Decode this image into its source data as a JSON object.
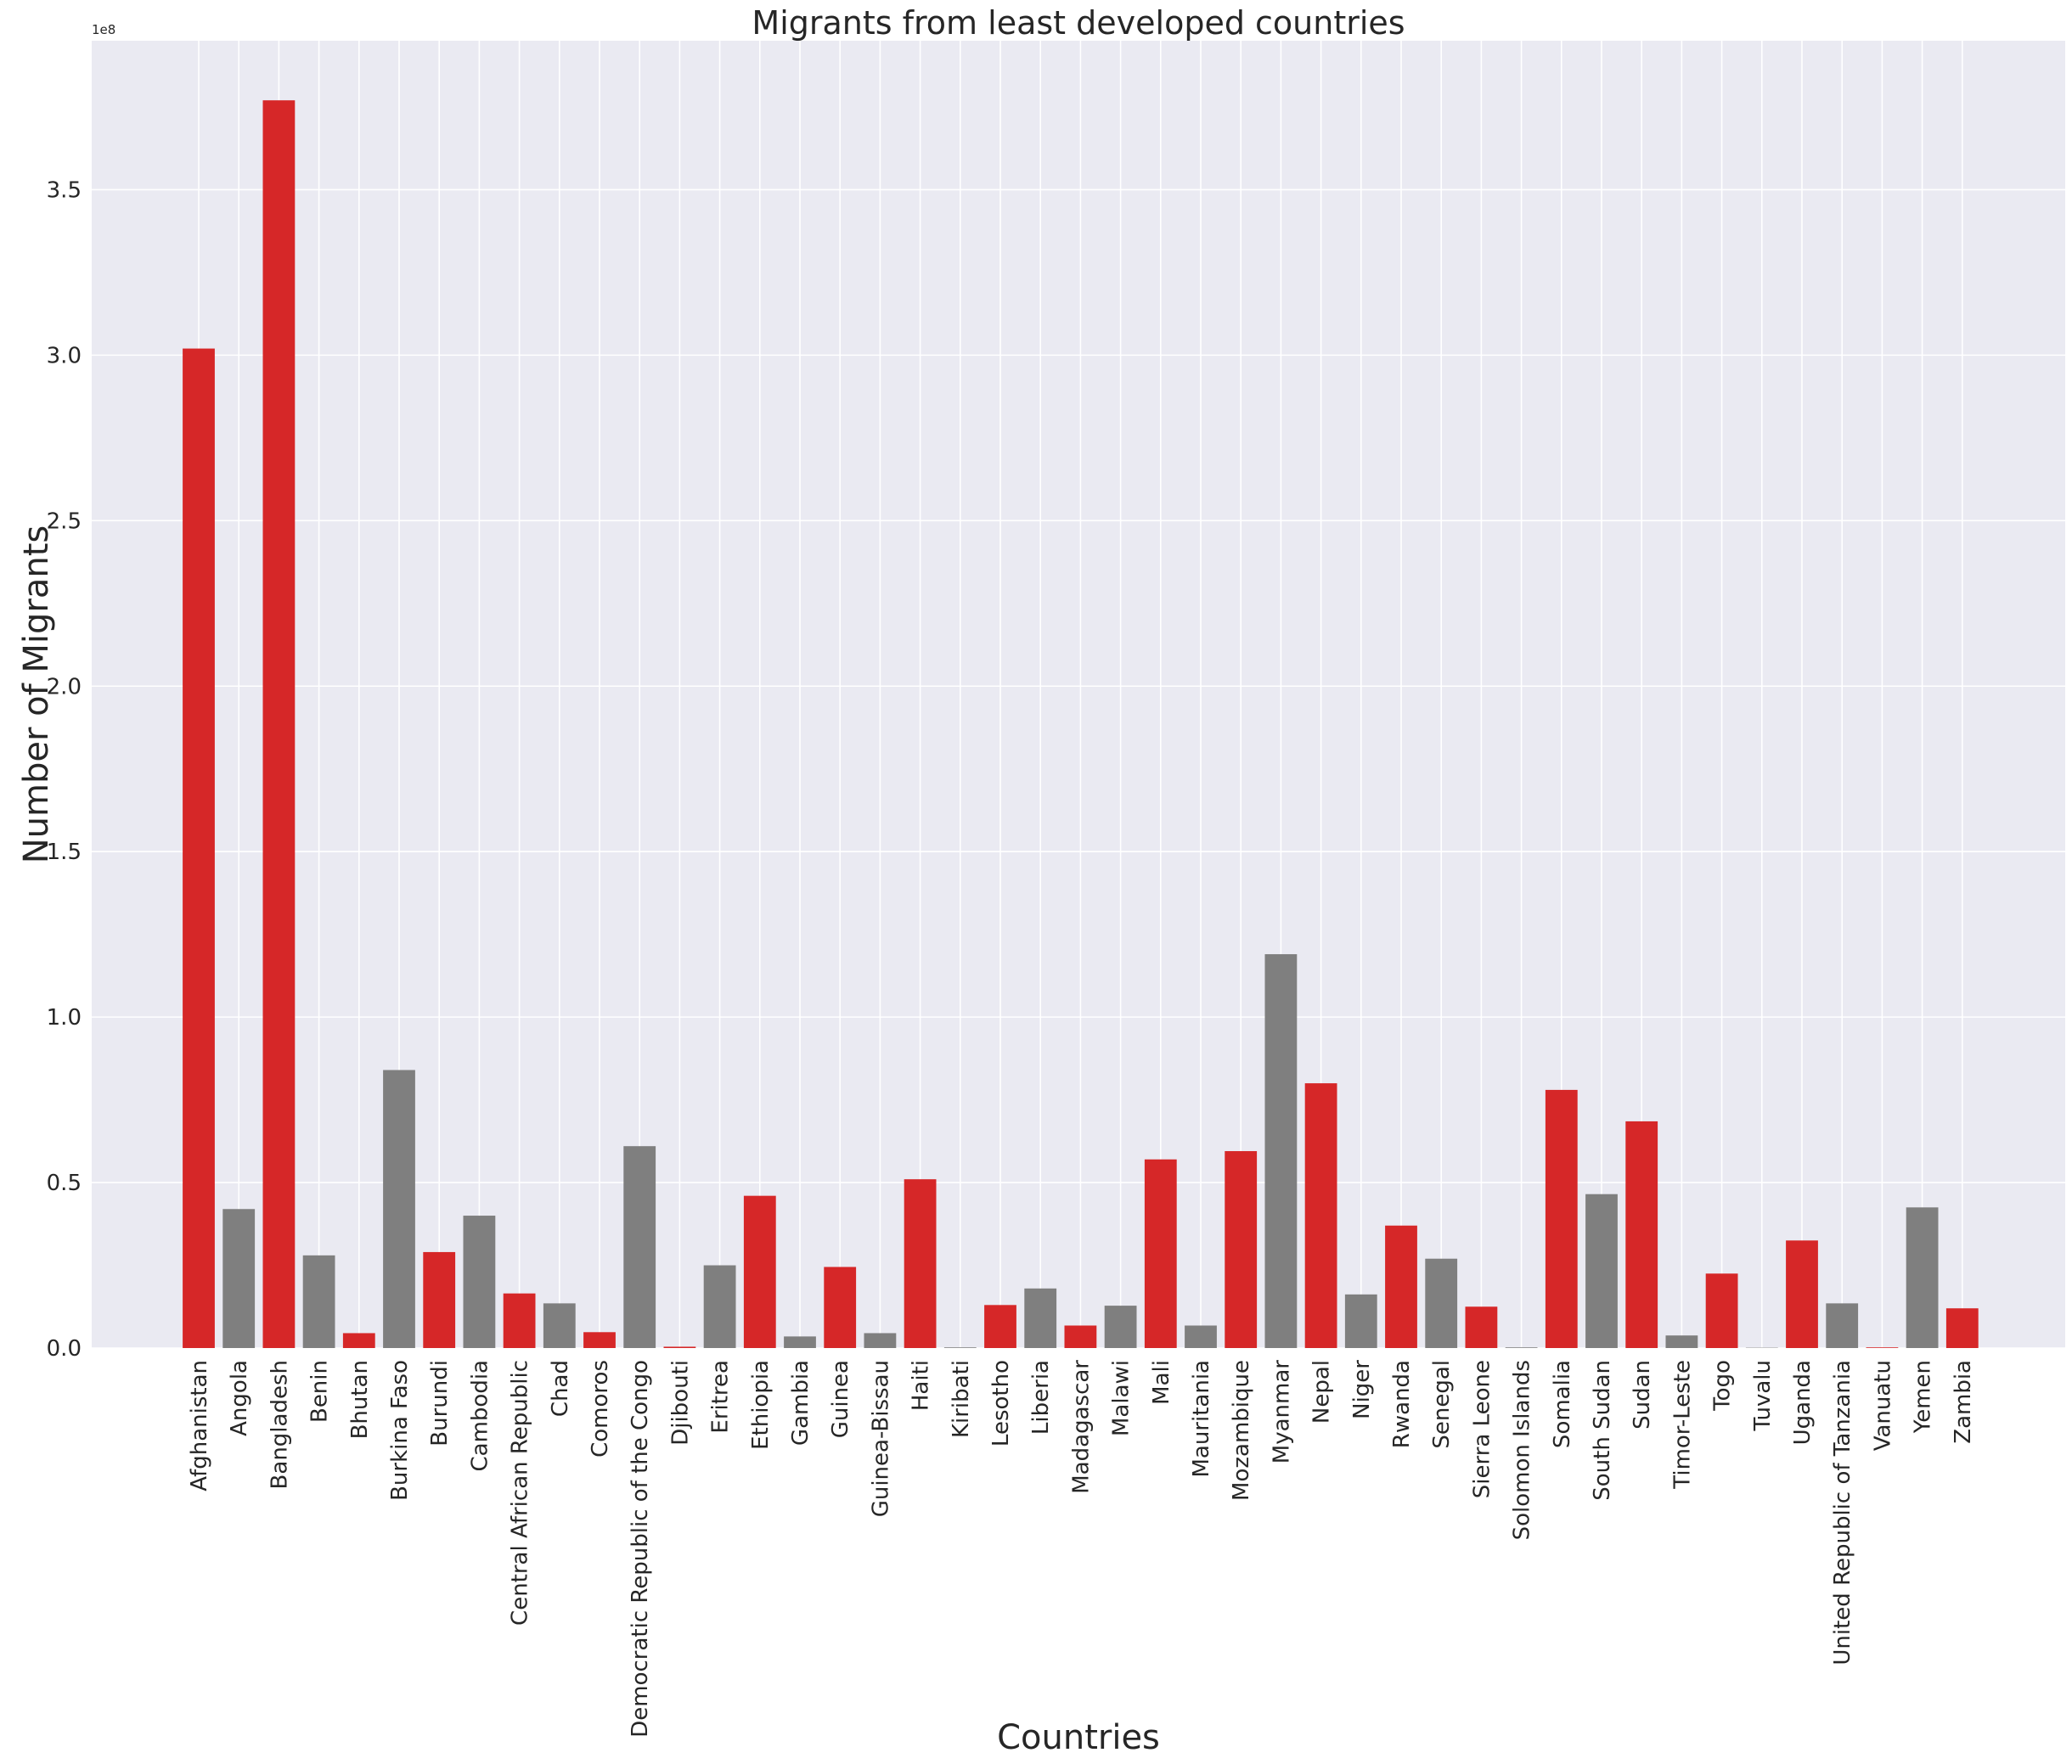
{
  "chart_data": {
    "type": "bar",
    "title": "Migrants from least developed countries",
    "xlabel": "Countries",
    "ylabel": "Number of Migrants",
    "y_offset_label": "1e8",
    "ylim": [
      0,
      3.95
    ],
    "yticks": [
      0.0,
      0.5,
      1.0,
      1.5,
      2.0,
      2.5,
      3.0,
      3.5
    ],
    "ytick_labels": [
      "0.0",
      "0.5",
      "1.0",
      "1.5",
      "2.0",
      "2.5",
      "3.0",
      "3.5"
    ],
    "value_units": "1e8 migrants",
    "grid": true,
    "colors": {
      "red": "#d62728",
      "gray": "#7f7f7f",
      "background": "#eaeaf2",
      "grid": "#ffffff"
    },
    "categories": [
      "Afghanistan",
      "Angola",
      "Bangladesh",
      "Benin",
      "Bhutan",
      "Burkina Faso",
      "Burundi",
      "Cambodia",
      "Central African Republic",
      "Chad",
      "Comoros",
      "Democratic Republic of the Congo",
      "Djibouti",
      "Eritrea",
      "Ethiopia",
      "Gambia",
      "Guinea",
      "Guinea-Bissau",
      "Haiti",
      "Kiribati",
      "Lesotho",
      "Liberia",
      "Madagascar",
      "Malawi",
      "Mali",
      "Mauritania",
      "Mozambique",
      "Myanmar",
      "Nepal",
      "Niger",
      "Rwanda",
      "Senegal",
      "Sierra Leone",
      "Solomon Islands",
      "Somalia",
      "South Sudan",
      "Sudan",
      "Timor-Leste",
      "Togo",
      "Tuvalu",
      "Uganda",
      "United Republic of Tanzania",
      "Vanuatu",
      "Yemen",
      "Zambia"
    ],
    "values": [
      3.02,
      0.42,
      3.77,
      0.28,
      0.045,
      0.84,
      0.29,
      0.4,
      0.165,
      0.135,
      0.048,
      0.61,
      0.004,
      0.25,
      0.46,
      0.035,
      0.245,
      0.045,
      0.51,
      0.002,
      0.13,
      0.18,
      0.068,
      0.128,
      0.57,
      0.068,
      0.595,
      1.19,
      0.8,
      0.162,
      0.37,
      0.27,
      0.125,
      0.002,
      0.78,
      0.465,
      0.685,
      0.038,
      0.225,
      0.001,
      0.325,
      0.135,
      0.002,
      0.425,
      0.12
    ],
    "bar_colors": [
      "red",
      "gray",
      "red",
      "gray",
      "red",
      "gray",
      "red",
      "gray",
      "red",
      "gray",
      "red",
      "gray",
      "red",
      "gray",
      "red",
      "gray",
      "red",
      "gray",
      "red",
      "gray",
      "red",
      "gray",
      "red",
      "gray",
      "red",
      "gray",
      "red",
      "gray",
      "red",
      "gray",
      "red",
      "gray",
      "red",
      "gray",
      "red",
      "gray",
      "red",
      "gray",
      "red",
      "gray",
      "red",
      "gray",
      "red",
      "gray",
      "red"
    ]
  }
}
